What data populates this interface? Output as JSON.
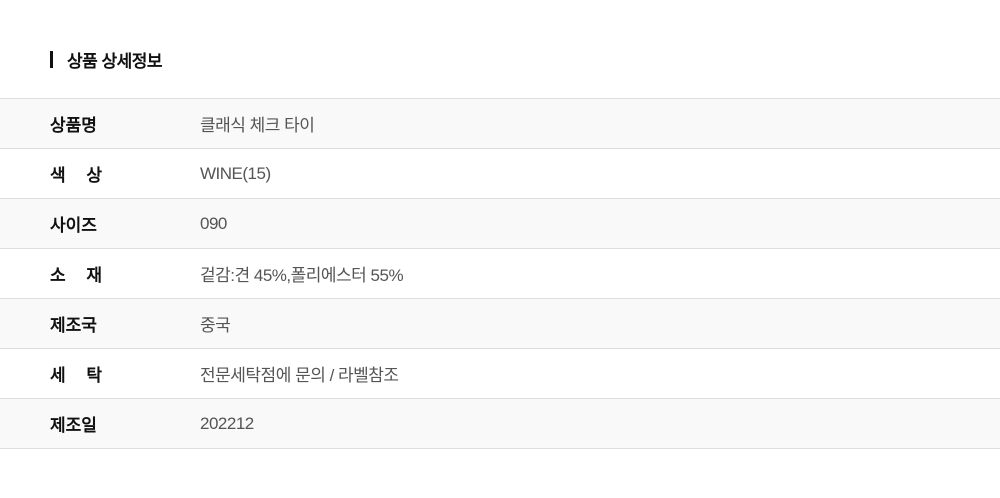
{
  "section_title": "상품 상세정보",
  "rows": [
    {
      "label": "상품명",
      "value": "클래식 체크 타이"
    },
    {
      "label": "색 상",
      "value": "WINE(15)"
    },
    {
      "label": "사이즈",
      "value": "090"
    },
    {
      "label": "소 재",
      "value": "겉감:견 45%,폴리에스터 55%"
    },
    {
      "label": "제조국",
      "value": "중국"
    },
    {
      "label": "세 탁",
      "value": "전문세탁점에 문의 / 라벨참조"
    },
    {
      "label": "제조일",
      "value": "202212"
    }
  ]
}
